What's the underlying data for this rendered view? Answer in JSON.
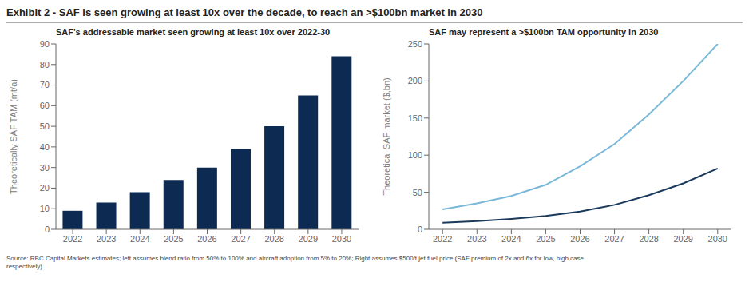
{
  "title": "Exhibit 2 - SAF is seen growing at least 10x over the decade, to reach an >$100bn market in 2030",
  "annotations": [
    "Source: RBC Capital Markets estimates; left assumes blend ratio from 50% to 100% and aircraft adoption from 5% to 20%; Right assumes $500/t jet fuel price (SAF premium of 2x and 6x for low, high case\nrespectively)"
  ],
  "chart_data": [
    {
      "type": "bar",
      "title": "SAF's addressable market seen growing at least 10x over 2022-30",
      "categories": [
        "2022",
        "2023",
        "2024",
        "2025",
        "2026",
        "2027",
        "2028",
        "2029",
        "2030"
      ],
      "values": [
        9,
        13,
        18,
        24,
        30,
        39,
        50,
        65,
        84
      ],
      "color": "#0D2B52",
      "y_label": "Theoretically SAF TAM (mt/a)",
      "ylim": [
        0,
        90
      ],
      "yticks": [
        0,
        10,
        20,
        30,
        40,
        50,
        60,
        70,
        80,
        90
      ],
      "grid": false
    },
    {
      "type": "line",
      "title": "SAF may represent a >$100bn TAM opportunity in 2030",
      "x": [
        2022,
        2023,
        2024,
        2025,
        2026,
        2027,
        2028,
        2029,
        2030
      ],
      "xlim": [
        2021.6,
        2030.4
      ],
      "xticks": [
        2022,
        2023,
        2024,
        2025,
        2026,
        2027,
        2028,
        2029,
        2030
      ],
      "series": [
        {
          "color": "#7ab8d9",
          "values": [
            27,
            35,
            45,
            60,
            85,
            115,
            155,
            200,
            250
          ]
        },
        {
          "color": "#1a3a5c",
          "values": [
            9,
            11,
            14,
            18,
            24,
            33,
            46,
            62,
            82
          ]
        }
      ],
      "y_label": "Theoretical SAF market ($,bn)",
      "ylim": [
        0,
        250
      ],
      "yticks": [
        0,
        50,
        100,
        150,
        200,
        250
      ],
      "grid": false
    }
  ]
}
